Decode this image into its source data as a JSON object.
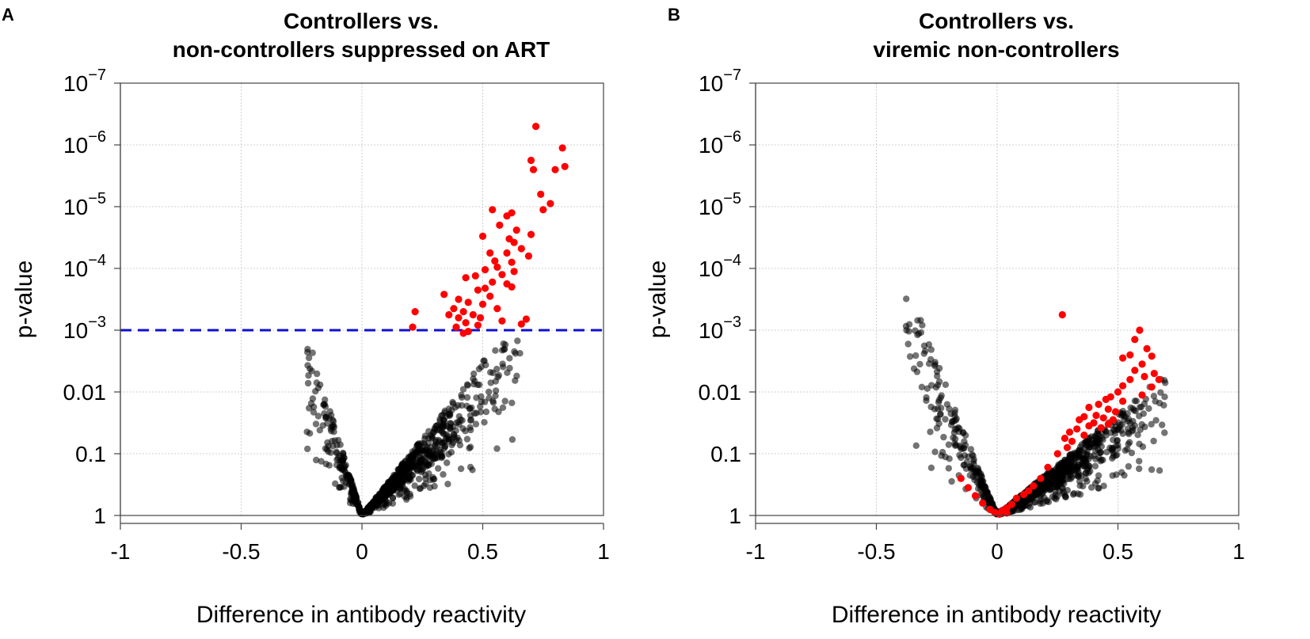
{
  "chart_data": [
    {
      "panel": "A",
      "type": "scatter",
      "title_lines": [
        "Controllers vs.",
        "non-controllers suppressed on ART"
      ],
      "xlabel": "Difference in antibody reactivity",
      "ylabel": "p-value",
      "xlim": [
        -1,
        1
      ],
      "ylim_neglog10": [
        0,
        7
      ],
      "x_ticks": [
        -1,
        -0.5,
        0,
        0.5,
        1
      ],
      "x_tick_labels": [
        "-1",
        "-0.5",
        "0",
        "0.5",
        "1"
      ],
      "y_ticks": [
        {
          "pos": 0,
          "label": "1"
        },
        {
          "pos": 1,
          "label": "0.1"
        },
        {
          "pos": 2,
          "label": "0.01"
        },
        {
          "pos": 3,
          "base": "10",
          "exp": "−3"
        },
        {
          "pos": 4,
          "base": "10",
          "exp": "−4"
        },
        {
          "pos": 5,
          "base": "10",
          "exp": "−5"
        },
        {
          "pos": 6,
          "base": "10",
          "exp": "−6"
        },
        {
          "pos": 7,
          "base": "10",
          "exp": "−7"
        }
      ],
      "threshold": {
        "p": 0.001,
        "neglog10": 3,
        "color": "#1010d0"
      },
      "colors": {
        "significant": "#ff0000",
        "background": "#000000"
      },
      "significant_points": [
        [
          0.72,
          6.3
        ],
        [
          0.83,
          5.95
        ],
        [
          0.7,
          5.75
        ],
        [
          0.84,
          5.65
        ],
        [
          0.71,
          5.6
        ],
        [
          0.8,
          5.6
        ],
        [
          0.74,
          5.2
        ],
        [
          0.78,
          5.05
        ],
        [
          0.75,
          4.95
        ],
        [
          0.54,
          4.95
        ],
        [
          0.62,
          4.9
        ],
        [
          0.6,
          4.85
        ],
        [
          0.57,
          4.7
        ],
        [
          0.64,
          4.62
        ],
        [
          0.7,
          4.55
        ],
        [
          0.5,
          4.52
        ],
        [
          0.61,
          4.48
        ],
        [
          0.63,
          4.42
        ],
        [
          0.66,
          4.32
        ],
        [
          0.6,
          4.25
        ],
        [
          0.53,
          4.25
        ],
        [
          0.69,
          4.2
        ],
        [
          0.62,
          4.1
        ],
        [
          0.55,
          4.12
        ],
        [
          0.56,
          4.02
        ],
        [
          0.51,
          3.98
        ],
        [
          0.63,
          3.95
        ],
        [
          0.58,
          3.9
        ],
        [
          0.47,
          3.88
        ],
        [
          0.54,
          3.78
        ],
        [
          0.6,
          3.75
        ],
        [
          0.62,
          3.7
        ],
        [
          0.43,
          3.85
        ],
        [
          0.48,
          3.65
        ],
        [
          0.51,
          3.68
        ],
        [
          0.53,
          3.55
        ],
        [
          0.4,
          3.5
        ],
        [
          0.34,
          3.58
        ],
        [
          0.44,
          3.45
        ],
        [
          0.5,
          3.42
        ],
        [
          0.56,
          3.35
        ],
        [
          0.38,
          3.35
        ],
        [
          0.42,
          3.3
        ],
        [
          0.46,
          3.25
        ],
        [
          0.36,
          3.25
        ],
        [
          0.4,
          3.2
        ],
        [
          0.49,
          3.2
        ],
        [
          0.58,
          3.15
        ],
        [
          0.68,
          3.18
        ],
        [
          0.66,
          3.1
        ],
        [
          0.43,
          3.12
        ],
        [
          0.48,
          3.08
        ],
        [
          0.39,
          3.05
        ],
        [
          0.44,
          2.98
        ],
        [
          0.42,
          2.95
        ],
        [
          0.22,
          3.3
        ],
        [
          0.21,
          3.05
        ]
      ],
      "background_cloud": {
        "peak_x": 0.0,
        "right_slope": 5.0,
        "left_slope": 13.0,
        "right_extent": 0.66,
        "left_extent": -0.23,
        "count": 900
      }
    },
    {
      "panel": "B",
      "type": "scatter",
      "title_lines": [
        "Controllers vs.",
        "viremic non-controllers"
      ],
      "xlabel": "Difference in antibody reactivity",
      "ylabel": "p-value",
      "xlim": [
        -1,
        1
      ],
      "ylim_neglog10": [
        0,
        7
      ],
      "x_ticks": [
        -1,
        -0.5,
        0,
        0.5,
        1
      ],
      "x_tick_labels": [
        "-1",
        "-0.5",
        "0",
        "0.5",
        "1"
      ],
      "y_ticks": [
        {
          "pos": 0,
          "label": "1"
        },
        {
          "pos": 1,
          "label": "0.1"
        },
        {
          "pos": 2,
          "label": "0.01"
        },
        {
          "pos": 3,
          "base": "10",
          "exp": "−3"
        },
        {
          "pos": 4,
          "base": "10",
          "exp": "−4"
        },
        {
          "pos": 5,
          "base": "10",
          "exp": "−5"
        },
        {
          "pos": 6,
          "base": "10",
          "exp": "−6"
        },
        {
          "pos": 7,
          "base": "10",
          "exp": "−7"
        }
      ],
      "colors": {
        "significant": "#ff0000",
        "background": "#000000"
      },
      "significant_points": [
        [
          0.27,
          3.25
        ],
        [
          0.59,
          3.0
        ],
        [
          0.57,
          2.85
        ],
        [
          0.62,
          2.7
        ],
        [
          0.55,
          2.6
        ],
        [
          0.64,
          2.58
        ],
        [
          0.52,
          2.55
        ],
        [
          0.6,
          2.45
        ],
        [
          0.57,
          2.35
        ],
        [
          0.65,
          2.3
        ],
        [
          0.61,
          2.25
        ],
        [
          0.55,
          2.2
        ],
        [
          0.67,
          2.2
        ],
        [
          0.52,
          2.1
        ],
        [
          0.64,
          2.08
        ],
        [
          0.5,
          2.0
        ],
        [
          0.6,
          1.95
        ],
        [
          0.47,
          1.92
        ],
        [
          0.45,
          1.88
        ],
        [
          0.52,
          1.85
        ],
        [
          0.42,
          1.8
        ],
        [
          0.38,
          1.75
        ],
        [
          0.46,
          1.72
        ],
        [
          0.49,
          1.68
        ],
        [
          0.41,
          1.62
        ],
        [
          0.44,
          1.58
        ],
        [
          0.36,
          1.6
        ],
        [
          0.34,
          1.55
        ],
        [
          0.48,
          1.55
        ],
        [
          0.4,
          1.5
        ],
        [
          0.46,
          1.48
        ],
        [
          0.38,
          1.45
        ],
        [
          0.43,
          1.42
        ],
        [
          0.33,
          1.4
        ],
        [
          0.3,
          1.35
        ],
        [
          0.36,
          1.3
        ],
        [
          0.28,
          1.25
        ],
        [
          0.31,
          1.2
        ],
        [
          0.29,
          1.1
        ],
        [
          0.25,
          1.0
        ],
        [
          0.21,
          0.78
        ],
        [
          0.18,
          0.6
        ],
        [
          0.15,
          0.48
        ],
        [
          0.13,
          0.4
        ],
        [
          0.11,
          0.34
        ],
        [
          0.08,
          0.28
        ],
        [
          0.06,
          0.18
        ],
        [
          0.04,
          0.12
        ],
        [
          0.02,
          0.08
        ],
        [
          -0.01,
          0.05
        ],
        [
          -0.03,
          0.1
        ],
        [
          -0.06,
          0.2
        ],
        [
          -0.09,
          0.32
        ],
        [
          -0.12,
          0.45
        ],
        [
          -0.15,
          0.6
        ],
        [
          0.04,
          0.04
        ],
        [
          0.01,
          0.02
        ]
      ],
      "background_cloud": {
        "peak_x": 0.0,
        "right_slope": 3.3,
        "left_slope": 10.0,
        "right_extent": 0.7,
        "left_extent": -0.38,
        "count": 1100
      }
    }
  ],
  "panel_labels": [
    "A",
    "B"
  ]
}
